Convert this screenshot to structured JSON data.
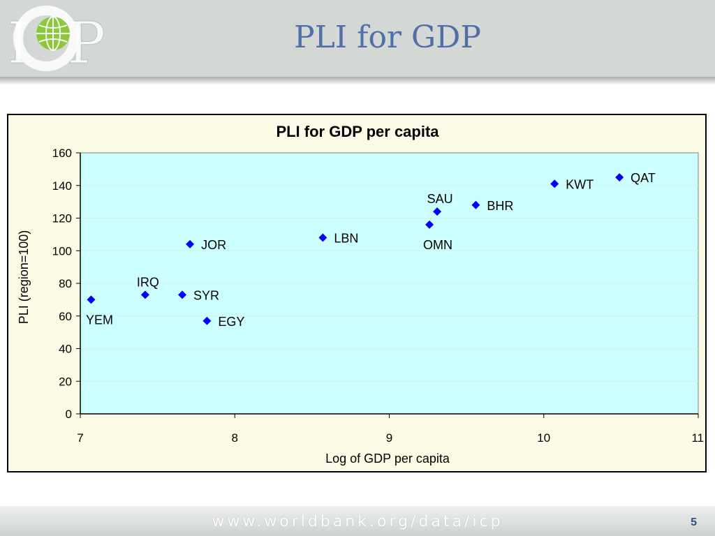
{
  "slide": {
    "title": "PLI for GDP",
    "footer_url": "www.worldbank.org/data/icp",
    "page_number": "5",
    "logo_text": "ICP"
  },
  "colors": {
    "header_bg": "#d3d8d5",
    "title": "#4f6fa6",
    "plot_bg": "#ccffff",
    "chart_bg": "#fbfbe6",
    "marker": "#0000ff",
    "logo_globe": "#8dc63f"
  },
  "chart_data": {
    "type": "scatter",
    "title": "PLI for GDP per capita",
    "xlabel": "Log of GDP per capita",
    "ylabel": "PLI (region=100)",
    "xlim": [
      7,
      11
    ],
    "ylim": [
      0,
      160
    ],
    "xticks": [
      7,
      8,
      9,
      10,
      11
    ],
    "yticks": [
      0,
      20,
      40,
      60,
      80,
      100,
      120,
      140,
      160
    ],
    "grid": "horizontal",
    "legend": "none",
    "points": [
      {
        "label": "YEM",
        "x": 7.07,
        "y": 70,
        "label_pos": "below"
      },
      {
        "label": "IRQ",
        "x": 7.42,
        "y": 73,
        "label_pos": "above"
      },
      {
        "label": "SYR",
        "x": 7.66,
        "y": 73,
        "label_pos": "right"
      },
      {
        "label": "JOR",
        "x": 7.71,
        "y": 104,
        "label_pos": "right"
      },
      {
        "label": "EGY",
        "x": 7.82,
        "y": 57,
        "label_pos": "right"
      },
      {
        "label": "LBN",
        "x": 8.57,
        "y": 108,
        "label_pos": "right"
      },
      {
        "label": "OMN",
        "x": 9.26,
        "y": 116,
        "label_pos": "below"
      },
      {
        "label": "SAU",
        "x": 9.31,
        "y": 124,
        "label_pos": "above"
      },
      {
        "label": "BHR",
        "x": 9.56,
        "y": 128,
        "label_pos": "right"
      },
      {
        "label": "KWT",
        "x": 10.07,
        "y": 141,
        "label_pos": "right"
      },
      {
        "label": "QAT",
        "x": 10.49,
        "y": 145,
        "label_pos": "right"
      }
    ]
  }
}
